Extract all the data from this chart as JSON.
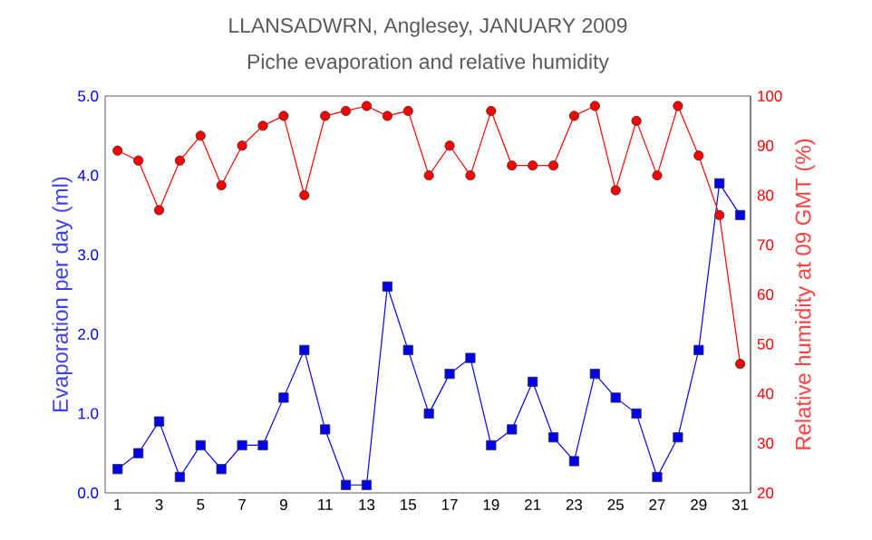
{
  "chart_data": {
    "type": "line",
    "title": "LLANSADWRN, Anglesey, JANUARY 2009",
    "subtitle": "Piche evaporation and relative humidity",
    "xlabel": null,
    "ylabel": "Evaporation per day (ml)",
    "y2label": "Relative humidity at 09 GMT (%)",
    "x": [
      1,
      2,
      3,
      4,
      5,
      6,
      7,
      8,
      9,
      10,
      11,
      12,
      13,
      14,
      15,
      16,
      17,
      18,
      19,
      20,
      21,
      22,
      23,
      24,
      25,
      26,
      27,
      28,
      29,
      30,
      31
    ],
    "xlim": [
      0.4,
      31.5
    ],
    "xticks": [
      1,
      3,
      5,
      7,
      9,
      11,
      13,
      15,
      17,
      19,
      21,
      23,
      25,
      27,
      29,
      31
    ],
    "ylim": [
      0,
      5
    ],
    "yticks": [
      {
        "value": 0,
        "label": "0.0"
      },
      {
        "value": 1,
        "label": "1.0"
      },
      {
        "value": 2,
        "label": "2.0"
      },
      {
        "value": 3,
        "label": "3.0"
      },
      {
        "value": 4,
        "label": "4.0"
      },
      {
        "value": 5,
        "label": "5.0"
      }
    ],
    "y2lim": [
      20,
      100
    ],
    "y2ticks": [
      20,
      30,
      40,
      50,
      60,
      70,
      80,
      90,
      100
    ],
    "series": [
      {
        "color": "#0000ee",
        "marker": "square",
        "values": [
          0.3,
          0.5,
          0.9,
          0.2,
          0.6,
          0.3,
          0.6,
          0.6,
          1.2,
          1.8,
          0.8,
          0.1,
          0.1,
          2.6,
          1.8,
          1.0,
          1.5,
          1.7,
          0.6,
          0.8,
          1.4,
          0.7,
          0.4,
          1.5,
          1.2,
          1.0,
          0.2,
          0.7,
          1.8,
          3.9,
          3.5
        ]
      },
      {
        "color": "#ff0000",
        "marker": "circle",
        "axis": "y2",
        "values": [
          89,
          87,
          77,
          87,
          92,
          82,
          90,
          94,
          96,
          80,
          96,
          97,
          98,
          96,
          97,
          84,
          90,
          84,
          97,
          86,
          86,
          86,
          96,
          98,
          81,
          95,
          84,
          98,
          88,
          76,
          46
        ]
      }
    ]
  }
}
